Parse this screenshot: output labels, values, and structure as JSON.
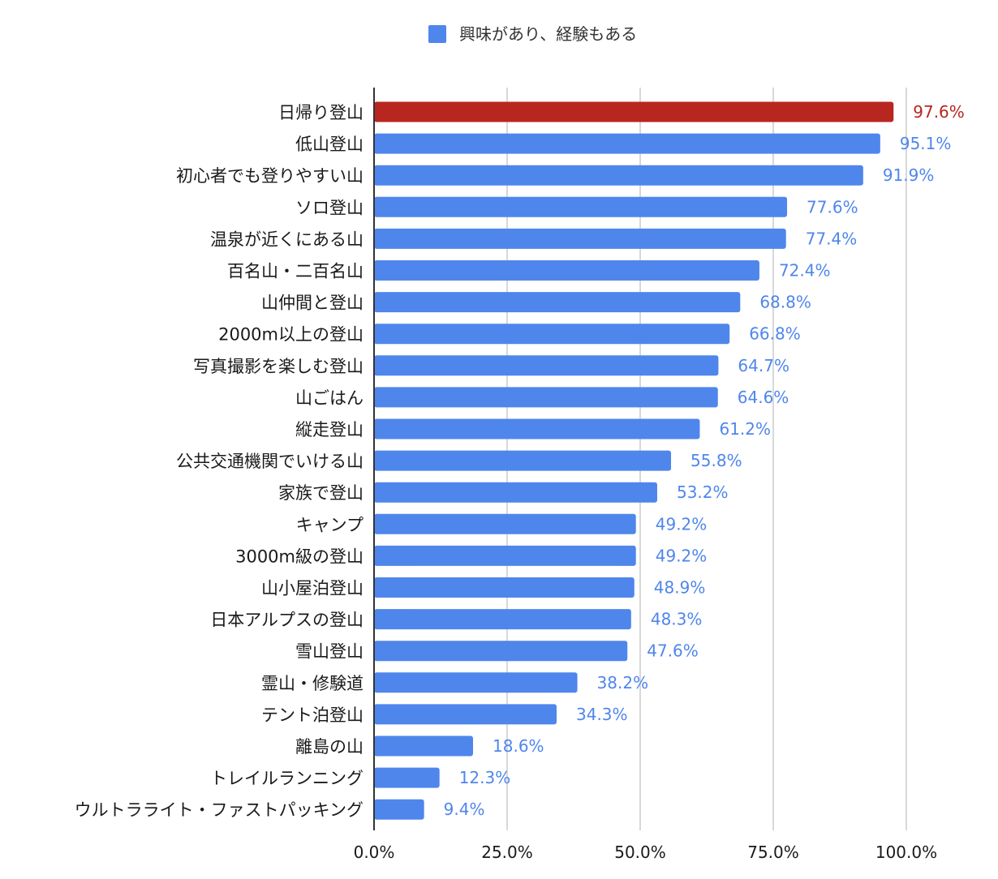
{
  "chart_data": {
    "type": "bar",
    "orientation": "horizontal",
    "categories": [
      "日帰り登山",
      "低山登山",
      "初心者でも登りやすい山",
      "ソロ登山",
      "温泉が近くにある山",
      "百名山・二百名山",
      "山仲間と登山",
      "2000m以上の登山",
      "写真撮影を楽しむ登山",
      "山ごはん",
      "縦走登山",
      "公共交通機関でいける山",
      "家族で登山",
      "キャンプ",
      "3000m級の登山",
      "山小屋泊登山",
      "日本アルプスの登山",
      "雪山登山",
      "霊山・修験道",
      "テント泊登山",
      "離島の山",
      "トレイルランニング",
      "ウルトラライト・ファストパッキング"
    ],
    "series": [
      {
        "name": "興味があり、経験もある",
        "values": [
          97.6,
          95.1,
          91.9,
          77.6,
          77.4,
          72.4,
          68.8,
          66.8,
          64.7,
          64.6,
          61.2,
          55.8,
          53.2,
          49.2,
          49.2,
          48.9,
          48.3,
          47.6,
          38.2,
          34.3,
          18.6,
          12.3,
          9.4
        ],
        "value_labels": [
          "97.6%",
          "95.1%",
          "91.9%",
          "77.6%",
          "77.4%",
          "72.4%",
          "68.8%",
          "66.8%",
          "64.7%",
          "64.6%",
          "61.2%",
          "55.8%",
          "53.2%",
          "49.2%",
          "49.2%",
          "48.9%",
          "48.3%",
          "47.6%",
          "38.2%",
          "34.3%",
          "18.6%",
          "12.3%",
          "9.4%"
        ]
      }
    ],
    "highlight_index": 0,
    "xlim": [
      0,
      100
    ],
    "xticks": [
      0,
      25,
      50,
      75,
      100
    ],
    "xtick_labels": [
      "0.0%",
      "25.0%",
      "50.0%",
      "75.0%",
      "100.0%"
    ],
    "grid": true,
    "legend": "top-center",
    "title": "",
    "xlabel": "",
    "ylabel": ""
  },
  "colors": {
    "bar": "#4F86EC",
    "highlight": "#B8271F",
    "value_label": "#4F86EC",
    "highlight_label": "#B8271F",
    "grid": "#cccccc",
    "axis": "#333333"
  }
}
